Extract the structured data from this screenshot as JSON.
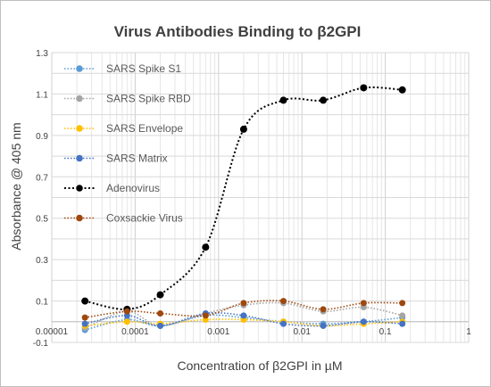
{
  "chart_data": {
    "type": "scatter",
    "title": "Virus Antibodies Binding to β2GPI",
    "xlabel": "Concentration of β2GPI in µM",
    "ylabel": "Absorbance @ 405 nm",
    "x_scale": "log",
    "xlim": [
      1e-05,
      1
    ],
    "ylim": [
      -0.1,
      1.3
    ],
    "x_ticks": [
      "0.00001",
      "0.0001",
      "0.001",
      "0.01",
      "0.1",
      "1"
    ],
    "y_ticks": [
      "-0.1",
      "0.1",
      "0.3",
      "0.5",
      "0.7",
      "0.9",
      "1.1",
      "1.3"
    ],
    "grid": "on",
    "legend_position": "left-inside",
    "x": [
      2.5e-05,
      8e-05,
      0.0002,
      0.0007,
      0.002,
      0.006,
      0.018,
      0.055,
      0.16
    ],
    "series": [
      {
        "name": "SARS Spike S1",
        "color": "#5b9bd5",
        "values": [
          -0.04,
          0.01,
          -0.02,
          0.03,
          0.02,
          0.0,
          -0.01,
          0.0,
          0.02
        ]
      },
      {
        "name": "SARS Spike RBD",
        "color": "#a5a5a5",
        "values": [
          -0.03,
          0.05,
          -0.02,
          0.04,
          0.08,
          0.09,
          0.05,
          0.07,
          0.03
        ]
      },
      {
        "name": "SARS Envelope",
        "color": "#ffc000",
        "values": [
          -0.02,
          0.0,
          -0.01,
          0.01,
          0.01,
          0.0,
          -0.02,
          -0.01,
          0.0
        ]
      },
      {
        "name": "SARS Matrix",
        "color": "#4472c4",
        "values": [
          -0.01,
          0.03,
          -0.02,
          0.04,
          0.03,
          -0.01,
          -0.02,
          0.0,
          -0.01
        ]
      },
      {
        "name": "Adenovirus",
        "color": "#000000",
        "values": [
          0.1,
          0.06,
          0.13,
          0.36,
          0.93,
          1.07,
          1.07,
          1.13,
          1.12
        ]
      },
      {
        "name": "Coxsackie Virus",
        "color": "#9e480e",
        "values": [
          0.02,
          0.05,
          0.04,
          0.03,
          0.09,
          0.1,
          0.06,
          0.09,
          0.09
        ]
      }
    ]
  }
}
